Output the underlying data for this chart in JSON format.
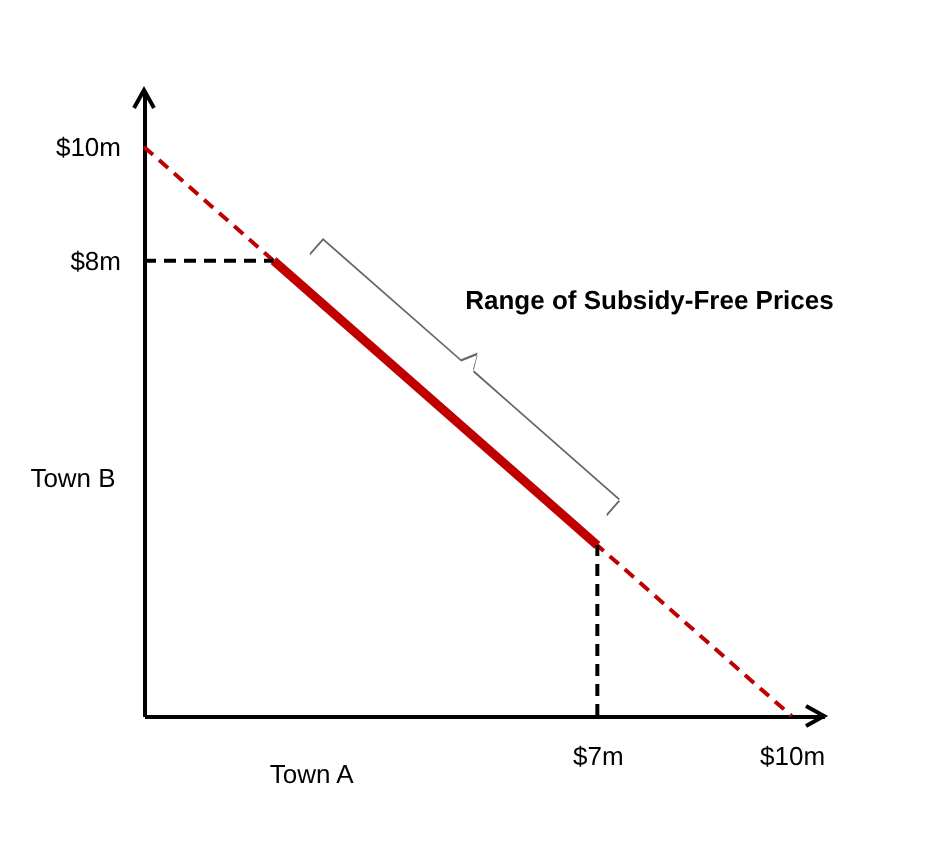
{
  "chart_data": {
    "type": "line",
    "xlabel": "Town A",
    "ylabel": "Town B",
    "xlim": [
      0,
      10.5
    ],
    "ylim": [
      0,
      11
    ],
    "xticks": [
      {
        "value": 7,
        "label": "$7m"
      },
      {
        "value": 10,
        "label": "$10m"
      }
    ],
    "yticks": [
      {
        "value": 8,
        "label": "$8m"
      },
      {
        "value": 10,
        "label": "$10m"
      }
    ],
    "grid": false,
    "annotations": [
      "Range of Subsidy-Free Prices"
    ],
    "series": [
      {
        "color": "#c00000",
        "line_style": "dashed",
        "x": [
          0,
          10
        ],
        "values": [
          10,
          0
        ]
      },
      {
        "color": "#c00000",
        "line_style": "solid",
        "x": [
          2,
          7
        ],
        "values": [
          8,
          3
        ]
      },
      {
        "color": "#000000",
        "line_style": "dashed",
        "x": [
          0,
          2
        ],
        "values": [
          8,
          8
        ]
      },
      {
        "color": "#000000",
        "line_style": "dashed",
        "x": [
          7,
          7
        ],
        "values": [
          0,
          3
        ]
      }
    ]
  }
}
